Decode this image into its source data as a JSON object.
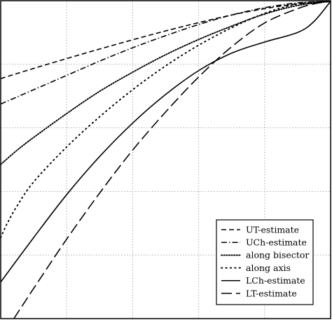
{
  "chart_data": {
    "type": "line",
    "title": "",
    "xlabel": "",
    "ylabel": "",
    "xlim": [
      0,
      1
    ],
    "ylim": [
      0,
      1
    ],
    "grid": true,
    "legend_position": "bottom-right",
    "series": [
      {
        "name": "UT-estimate",
        "style": "dashed",
        "x": [
          0.0,
          0.1,
          0.2,
          0.3,
          0.4,
          0.5,
          0.6,
          0.7,
          0.8,
          0.9,
          1.0
        ],
        "y": [
          0.755,
          0.787,
          0.818,
          0.848,
          0.877,
          0.905,
          0.931,
          0.955,
          0.975,
          0.99,
          0.998
        ]
      },
      {
        "name": "UCh-estimate",
        "style": "dashdot",
        "x": [
          0.0,
          0.1,
          0.2,
          0.3,
          0.4,
          0.5,
          0.6,
          0.7,
          0.8,
          0.9,
          1.0
        ],
        "y": [
          0.675,
          0.72,
          0.765,
          0.81,
          0.852,
          0.89,
          0.925,
          0.955,
          0.978,
          0.993,
          0.998
        ]
      },
      {
        "name": "along bisector",
        "style": "densely dotted",
        "x": [
          0.0,
          0.05,
          0.1,
          0.2,
          0.3,
          0.4,
          0.5,
          0.6,
          0.7,
          0.8,
          0.9,
          1.0
        ],
        "y": [
          0.485,
          0.53,
          0.57,
          0.645,
          0.715,
          0.775,
          0.83,
          0.878,
          0.92,
          0.958,
          0.985,
          0.998
        ]
      },
      {
        "name": "along axis",
        "style": "loosely dotted",
        "x": [
          0.0,
          0.02,
          0.05,
          0.1,
          0.2,
          0.3,
          0.4,
          0.5,
          0.6,
          0.7,
          0.8,
          0.9,
          1.0
        ],
        "y": [
          0.255,
          0.3,
          0.355,
          0.43,
          0.54,
          0.635,
          0.72,
          0.795,
          0.86,
          0.915,
          0.96,
          0.99,
          0.998
        ]
      },
      {
        "name": "LCh-estimate",
        "style": "solid",
        "x": [
          0.0,
          0.1,
          0.2,
          0.3,
          0.4,
          0.5,
          0.6,
          0.7,
          0.8,
          0.9,
          0.95,
          1.0
        ],
        "y": [
          0.115,
          0.255,
          0.39,
          0.51,
          0.615,
          0.705,
          0.78,
          0.835,
          0.87,
          0.9,
          0.935,
          0.998
        ]
      },
      {
        "name": "LT-estimate",
        "style": "long dashed",
        "x": [
          0.04,
          0.1,
          0.2,
          0.3,
          0.4,
          0.5,
          0.6,
          0.7,
          0.8,
          0.9,
          0.95,
          1.0
        ],
        "y": [
          0.0,
          0.095,
          0.25,
          0.395,
          0.53,
          0.65,
          0.76,
          0.855,
          0.93,
          0.975,
          0.99,
          0.998
        ]
      }
    ]
  },
  "legend": {
    "entries": [
      "UT-estimate",
      "UCh-estimate",
      "along bisector",
      "along axis",
      "LCh-estimate",
      "LT-estimate"
    ]
  }
}
